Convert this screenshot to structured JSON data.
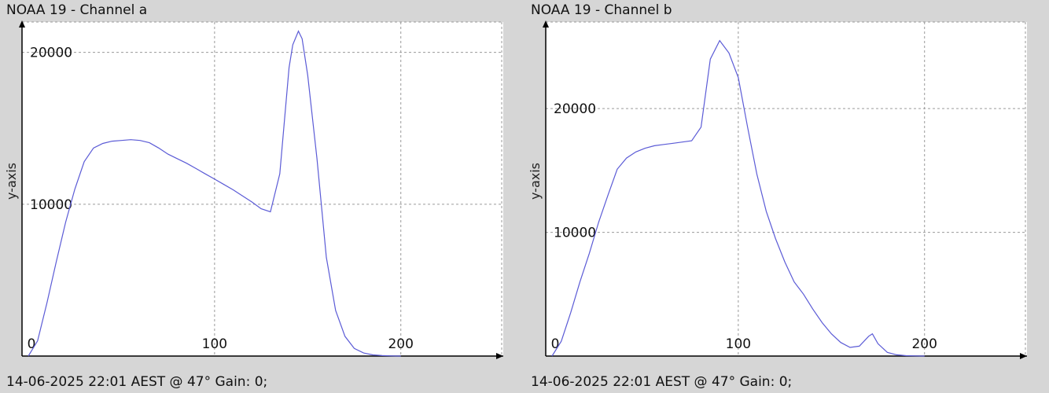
{
  "chart_data": [
    {
      "type": "line",
      "title": "NOAA 19 - Channel a",
      "ylabel": "y-axis",
      "xlabel": "",
      "footer": "14-06-2025 22:01 AEST @ 47° Gain: 0;",
      "xlim": [
        0,
        255
      ],
      "ylim": [
        0,
        22000
      ],
      "x_ticks": [
        0,
        100,
        200
      ],
      "y_ticks": [
        10000,
        20000
      ],
      "grid": true,
      "series": [
        {
          "color": "#5b5bd6",
          "x": [
            0,
            5,
            10,
            15,
            20,
            25,
            30,
            35,
            40,
            45,
            50,
            55,
            60,
            65,
            70,
            75,
            80,
            85,
            90,
            95,
            100,
            105,
            110,
            115,
            120,
            125,
            130,
            135,
            140,
            142,
            145,
            147,
            150,
            155,
            160,
            165,
            170,
            175,
            180,
            185,
            190,
            195,
            200
          ],
          "y": [
            0,
            1000,
            3500,
            6200,
            8800,
            11000,
            12800,
            13700,
            14000,
            14150,
            14200,
            14250,
            14200,
            14050,
            13700,
            13300,
            13000,
            12700,
            12350,
            12000,
            11650,
            11300,
            10950,
            10550,
            10150,
            9700,
            9500,
            12000,
            19000,
            20500,
            21400,
            20900,
            18500,
            13000,
            6500,
            3000,
            1300,
            500,
            200,
            80,
            30,
            10,
            0
          ]
        }
      ]
    },
    {
      "type": "line",
      "title": "NOAA 19 - Channel b",
      "ylabel": "y-axis",
      "xlabel": "",
      "footer": "14-06-2025 22:01 AEST @ 47° Gain: 0;",
      "xlim": [
        0,
        255
      ],
      "ylim": [
        0,
        27000
      ],
      "x_ticks": [
        0,
        100,
        200
      ],
      "y_ticks": [
        10000,
        20000
      ],
      "grid": true,
      "series": [
        {
          "color": "#5b5bd6",
          "x": [
            0,
            5,
            10,
            15,
            20,
            25,
            30,
            35,
            40,
            45,
            50,
            55,
            60,
            65,
            70,
            75,
            80,
            85,
            90,
            95,
            100,
            105,
            110,
            115,
            120,
            125,
            130,
            135,
            140,
            145,
            150,
            155,
            160,
            165,
            170,
            172,
            175,
            180,
            185,
            190,
            195,
            200
          ],
          "y": [
            0,
            1200,
            3500,
            6000,
            8300,
            10800,
            13000,
            15100,
            16000,
            16500,
            16800,
            17000,
            17100,
            17200,
            17300,
            17400,
            18500,
            24000,
            25500,
            24500,
            22500,
            18500,
            14700,
            11700,
            9500,
            7600,
            6000,
            5000,
            3800,
            2700,
            1800,
            1100,
            700,
            800,
            1600,
            1800,
            1000,
            300,
            100,
            30,
            10,
            0
          ]
        }
      ]
    }
  ]
}
